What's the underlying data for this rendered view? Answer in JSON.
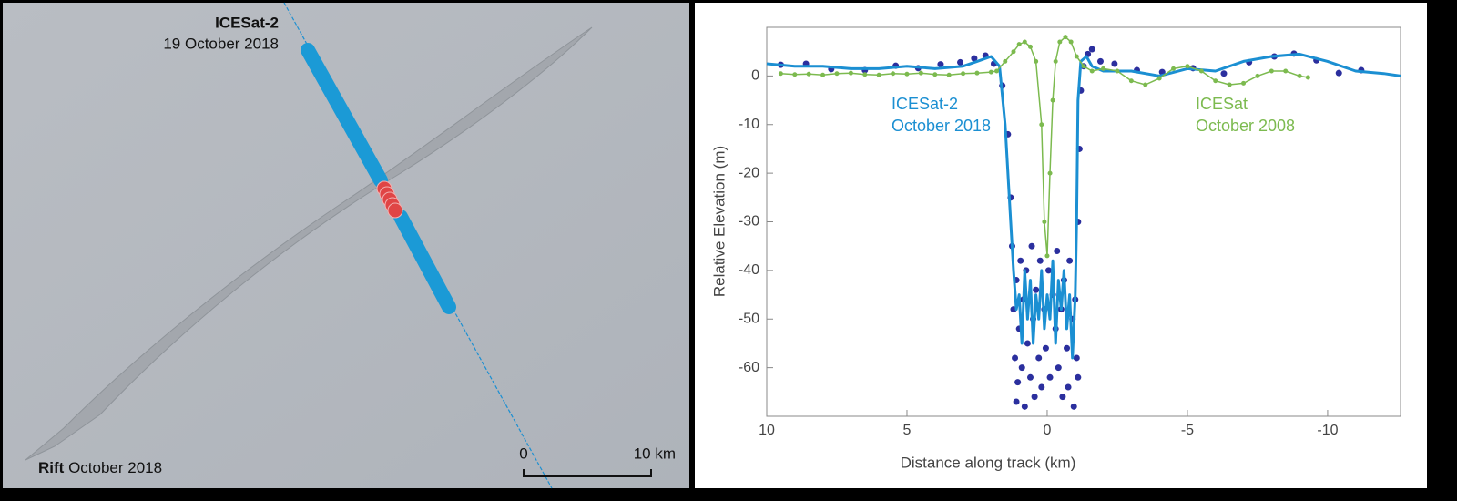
{
  "map": {
    "track_label": "ICESat-2",
    "track_date": "19 October 2018",
    "rift_label": "Rift",
    "rift_date": "October 2018",
    "scale_start": "0",
    "scale_end": "10 km"
  },
  "chart_data": {
    "type": "line",
    "xlabel": "Distance along track (km)",
    "ylabel": "Relative Elevation (m)",
    "xlim": [
      10,
      -12.6
    ],
    "xticks": [
      10,
      5,
      0,
      -5,
      -10
    ],
    "ylim": [
      -70,
      10
    ],
    "yticks": [
      0,
      -10,
      -20,
      -30,
      -40,
      -50,
      -60
    ],
    "series": [
      {
        "mode": "markers",
        "color": "#2b2f9e",
        "x": [
          9.5,
          8.6,
          7.7,
          6.5,
          5.4,
          4.6,
          3.8,
          3.1,
          2.6,
          2.2,
          1.9,
          1.6,
          1.4,
          1.3,
          1.25,
          1.2,
          1.15,
          1.1,
          1.1,
          1.05,
          1.0,
          0.95,
          0.9,
          0.85,
          0.8,
          0.75,
          0.7,
          0.6,
          0.55,
          0.5,
          0.45,
          0.4,
          0.3,
          0.25,
          0.2,
          0.1,
          0.05,
          -0.05,
          -0.1,
          -0.2,
          -0.3,
          -0.35,
          -0.4,
          -0.5,
          -0.55,
          -0.6,
          -0.7,
          -0.75,
          -0.8,
          -0.9,
          -0.95,
          -1.0,
          -1.05,
          -1.1,
          -1.1,
          -1.15,
          -1.2,
          -1.3,
          -1.45,
          -1.6,
          -1.9,
          -2.4,
          -3.2,
          -4.1,
          -5.2,
          -6.3,
          -7.2,
          -8.1,
          -8.8,
          -9.6,
          -10.4,
          -11.2
        ],
        "values": [
          2.3,
          2.5,
          1.4,
          1.2,
          2.1,
          1.6,
          2.4,
          2.8,
          3.6,
          4.2,
          2.5,
          -2,
          -12,
          -25,
          -35,
          -48,
          -58,
          -67,
          -42,
          -63,
          -52,
          -38,
          -60,
          -46,
          -68,
          -40,
          -55,
          -62,
          -35,
          -50,
          -66,
          -44,
          -58,
          -38,
          -64,
          -48,
          -56,
          -40,
          -62,
          -45,
          -52,
          -36,
          -60,
          -48,
          -66,
          -42,
          -56,
          -64,
          -38,
          -50,
          -68,
          -46,
          -58,
          -30,
          -62,
          -15,
          -3,
          2,
          4.5,
          5.5,
          3,
          2.5,
          1.2,
          0.8,
          1.6,
          0.5,
          2.8,
          4,
          4.6,
          3.2,
          0.6,
          1.2
        ]
      },
      {
        "mode": "line",
        "color": "#1b8fd2",
        "x": [
          10,
          9,
          8,
          7,
          6,
          5,
          4,
          3,
          2.5,
          2,
          1.7,
          1.5,
          1.3,
          1.2,
          1.1,
          1.0,
          0.9,
          0.8,
          0.7,
          0.6,
          0.5,
          0.4,
          0.3,
          0.2,
          0.1,
          0,
          -0.1,
          -0.2,
          -0.3,
          -0.4,
          -0.5,
          -0.6,
          -0.7,
          -0.8,
          -0.9,
          -1.0,
          -1.05,
          -1.1,
          -1.2,
          -1.4,
          -1.6,
          -2,
          -3,
          -4,
          -5,
          -6,
          -7,
          -8,
          -9,
          -10,
          -11,
          -12,
          -12.6
        ],
        "values": [
          2.5,
          2,
          2,
          1.5,
          1.5,
          2,
          1.5,
          2,
          3,
          4,
          2,
          -10,
          -30,
          -40,
          -48,
          -45,
          -55,
          -40,
          -50,
          -42,
          -55,
          -45,
          -50,
          -40,
          -52,
          -45,
          -50,
          -38,
          -55,
          -42,
          -48,
          -40,
          -52,
          -45,
          -58,
          -45,
          -30,
          -5,
          3,
          4,
          2,
          1,
          1,
          0,
          1.5,
          1,
          3,
          4,
          4.5,
          3,
          1,
          0.5,
          0
        ]
      },
      {
        "mode": "lines+markers",
        "color": "#7cba4f",
        "x": [
          9.5,
          9.0,
          8.5,
          8.0,
          7.5,
          7.0,
          6.5,
          6.0,
          5.5,
          5.0,
          4.5,
          4.0,
          3.5,
          3.0,
          2.5,
          2.0,
          1.8,
          1.5,
          1.2,
          1.0,
          0.8,
          0.6,
          0.4,
          0.2,
          0.1,
          0,
          -0.1,
          -0.2,
          -0.3,
          -0.45,
          -0.65,
          -0.85,
          -1.05,
          -1.3,
          -1.6,
          -2,
          -2.5,
          -3,
          -3.5,
          -4,
          -4.5,
          -5,
          -5.5,
          -6,
          -6.5,
          -7,
          -7.5,
          -8,
          -8.5,
          -9,
          -9.3
        ],
        "values": [
          0.5,
          0.3,
          0.4,
          0.2,
          0.5,
          0.6,
          0.3,
          0.2,
          0.5,
          0.4,
          0.6,
          0.3,
          0.2,
          0.5,
          0.6,
          0.8,
          1,
          3,
          5,
          6.5,
          7,
          6,
          3,
          -10,
          -30,
          -37,
          -20,
          -5,
          3,
          7,
          8,
          7,
          4,
          2,
          1,
          1.5,
          1,
          -1,
          -1.8,
          -0.5,
          1.5,
          2,
          1,
          -1,
          -1.8,
          -1.5,
          0,
          1,
          1,
          0,
          -0.3
        ]
      }
    ],
    "annotations": [
      {
        "text": "ICESat-2",
        "color": "#1b8fd2"
      },
      {
        "text": "October 2018",
        "color": "#1b8fd2"
      },
      {
        "text": "ICESat",
        "color": "#7cba4f"
      },
      {
        "text": "October 2008",
        "color": "#7cba4f"
      }
    ]
  }
}
